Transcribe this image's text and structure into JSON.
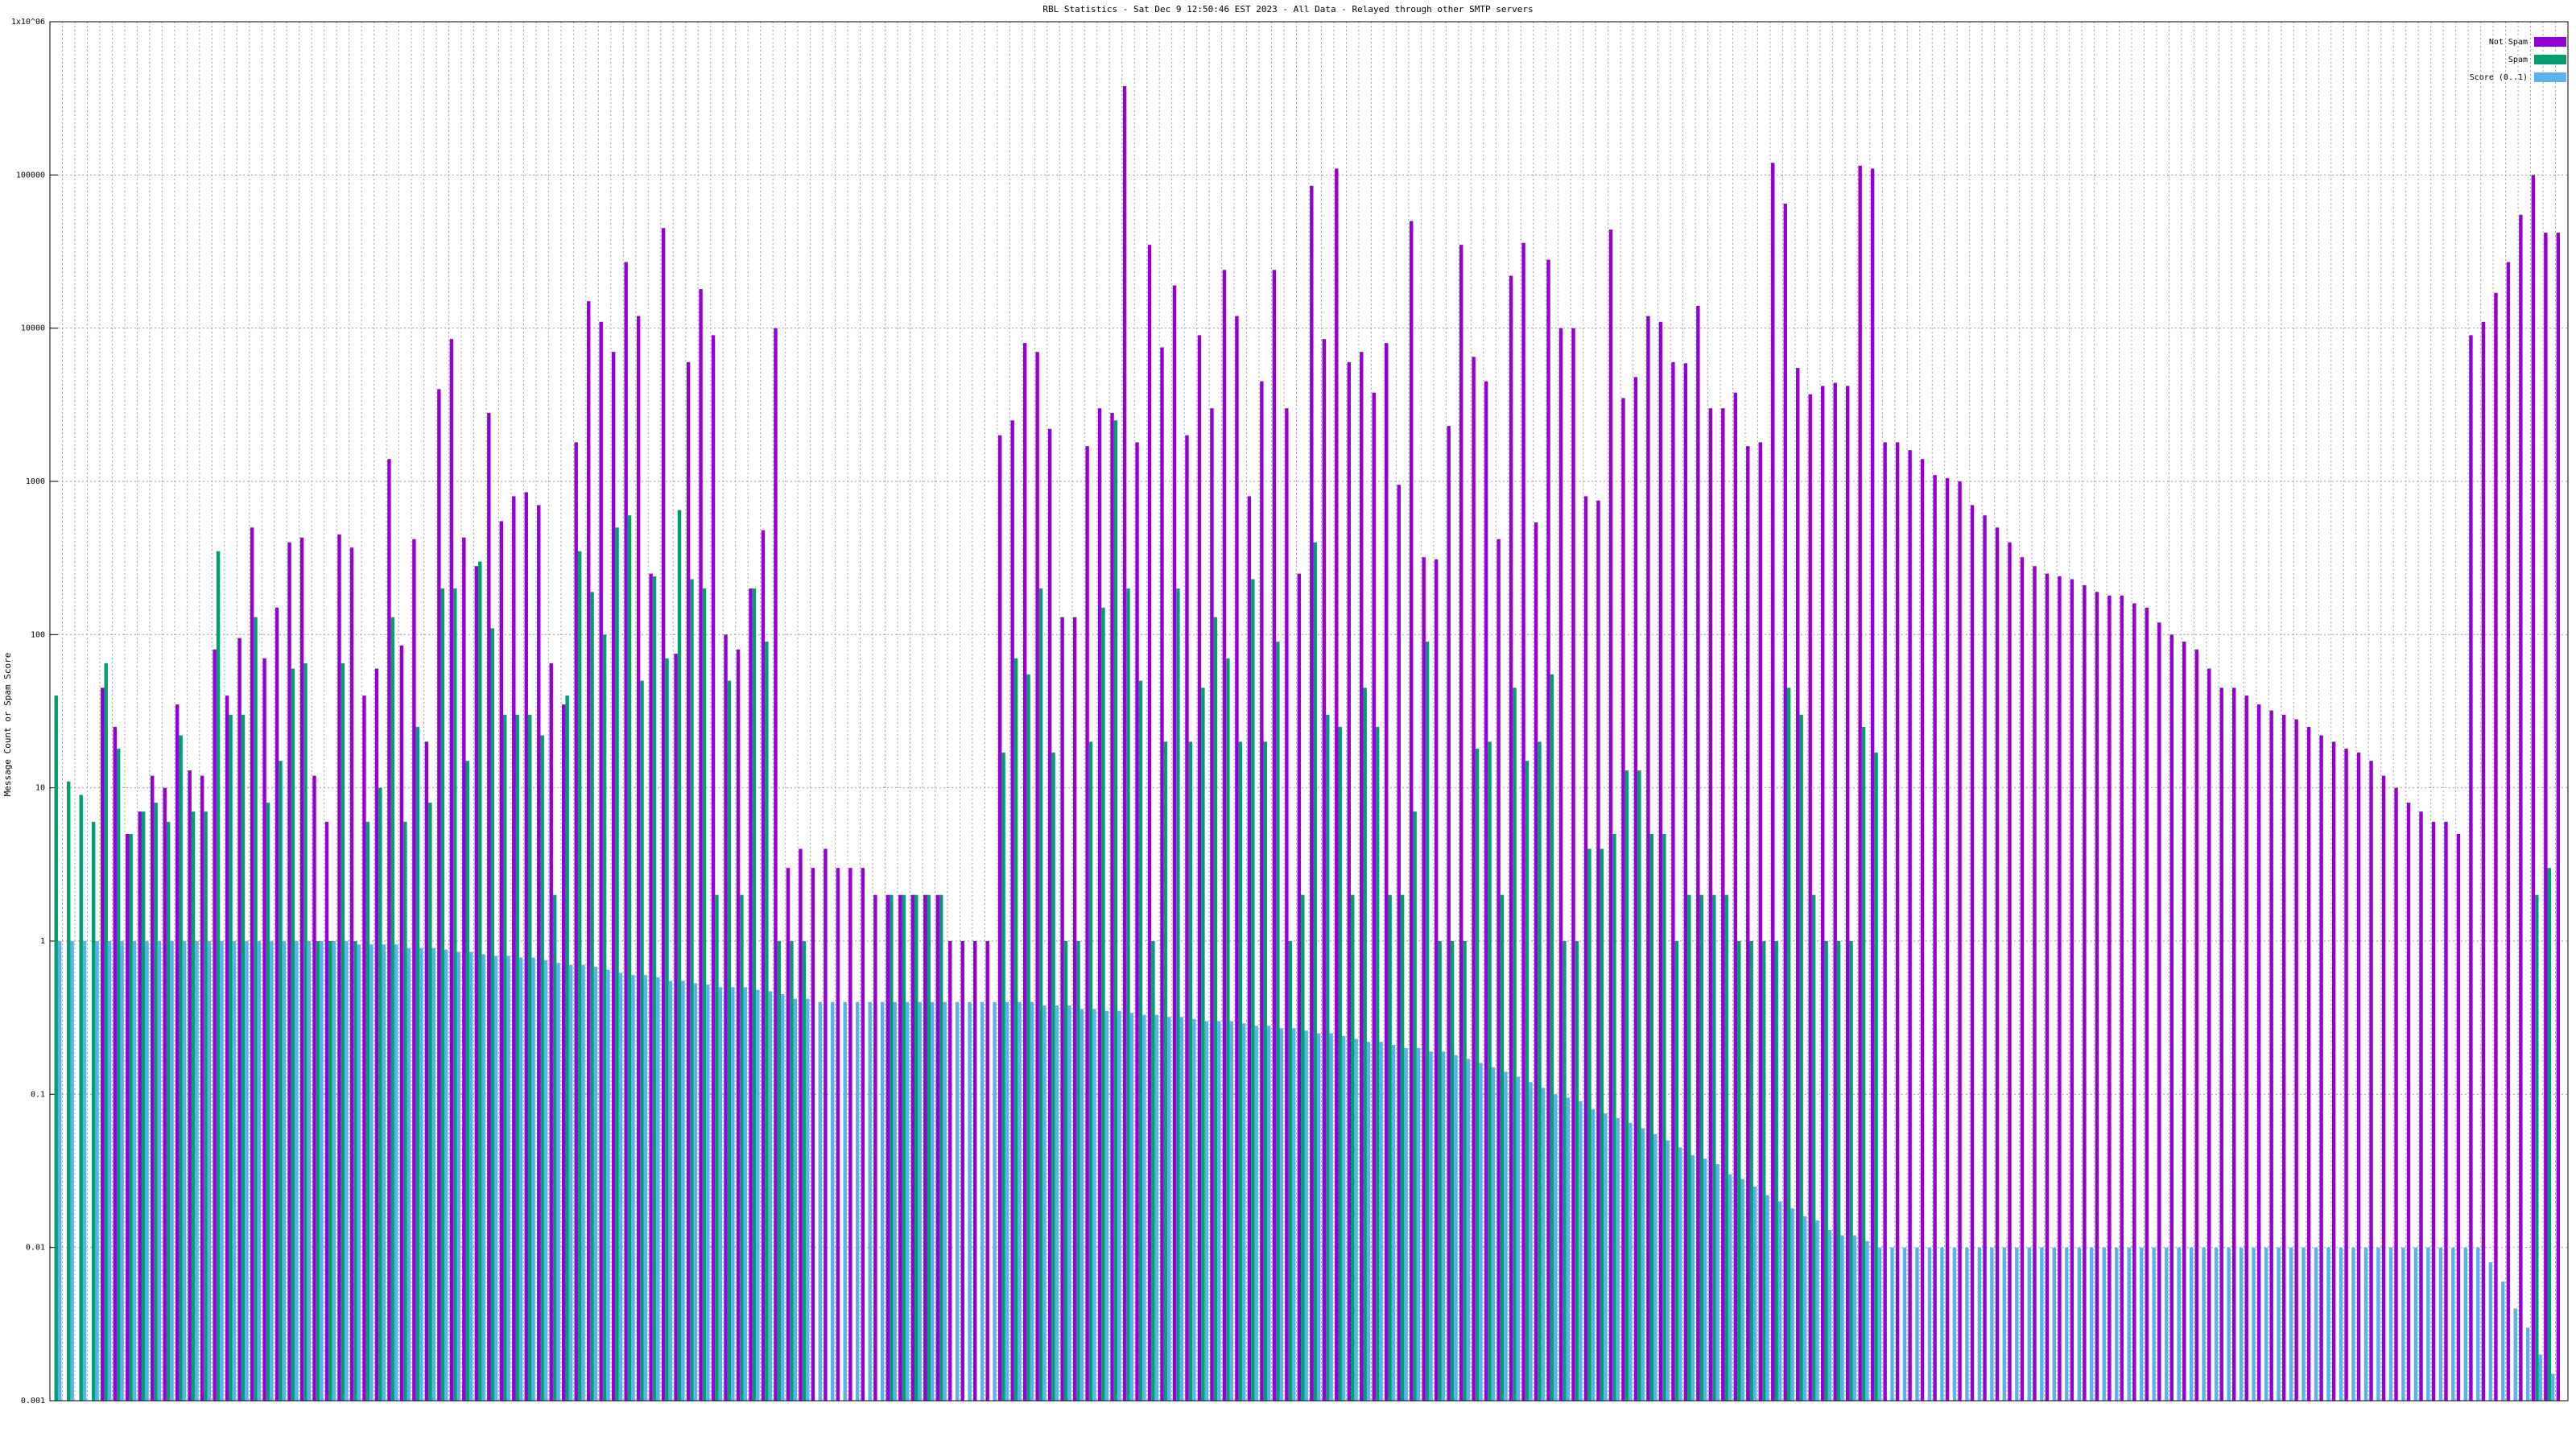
{
  "chart_data": {
    "type": "bar",
    "title": "RBL Statistics - Sat Dec  9 12:50:46 EST 2023 - All Data - Relayed through other SMTP servers",
    "y_label": "Message Count or Spam Score",
    "log_scale": true,
    "grid": true,
    "legend": "upper right",
    "ylim": [
      0.001,
      1000000
    ],
    "yticks": [
      0.001,
      0.01,
      0.1,
      1,
      10,
      100,
      1000,
      10000,
      100000,
      {
        "value": 1000000,
        "label": "1x10^06"
      }
    ],
    "series": [
      {
        "name": "Not Spam",
        "color": "#9400d3",
        "values": [
          null,
          null,
          null,
          null,
          45,
          25,
          5,
          7,
          12,
          10,
          35,
          13,
          12,
          80,
          40,
          95,
          500,
          70,
          150,
          400,
          430,
          12,
          6,
          450,
          370,
          40,
          60,
          1400,
          85,
          420,
          20,
          4000,
          8500,
          430,
          280,
          2800,
          550,
          800,
          850,
          700,
          65,
          35,
          1800,
          15000,
          11000,
          7000,
          27000,
          12000,
          250,
          45000,
          75,
          6000,
          18000,
          9000,
          100,
          80,
          200,
          480,
          10000,
          3,
          4,
          3,
          4,
          3,
          3,
          3,
          2,
          2,
          2,
          2,
          2,
          2,
          1,
          1,
          1,
          1,
          2000,
          2500,
          8000,
          7000,
          2200,
          130,
          130,
          1700,
          3000,
          2800,
          380000,
          1800,
          35000,
          7500,
          19000,
          2000,
          9000,
          3000,
          24000,
          12000,
          800,
          4500,
          24000,
          3000,
          250,
          85000,
          8500,
          110000,
          6000,
          7000,
          3800,
          8000,
          950,
          50000,
          320,
          310,
          2300,
          35000,
          6500,
          4500,
          420,
          22000,
          36000,
          540,
          28000,
          10000,
          10000,
          800,
          750,
          44000,
          3500,
          4800,
          12000,
          11000,
          6000,
          5900,
          14000,
          3000,
          3000,
          3800,
          1700,
          1800,
          120000,
          65000,
          5500,
          3700,
          4200,
          4400,
          4200,
          115000,
          110000,
          1800,
          1800,
          1600,
          1400,
          1100,
          1050,
          1000,
          700,
          600,
          500,
          400,
          320,
          280,
          250,
          240,
          230,
          210,
          190,
          180,
          180,
          160,
          150,
          120,
          100,
          90,
          80,
          60,
          45,
          45,
          40,
          35,
          32,
          30,
          28,
          25,
          22,
          20,
          18,
          17,
          15,
          12,
          10,
          8,
          7,
          6,
          6,
          5,
          9000,
          11000,
          17000,
          27000,
          55000,
          100000,
          42000,
          42000
        ]
      },
      {
        "name": "Spam",
        "color": "#009e73",
        "values": [
          40,
          11,
          9,
          6,
          65,
          18,
          5,
          7,
          8,
          6,
          22,
          7,
          7,
          350,
          30,
          30,
          130,
          8,
          15,
          60,
          65,
          1,
          1,
          65,
          1,
          6,
          10,
          130,
          6,
          25,
          8,
          200,
          200,
          15,
          300,
          110,
          30,
          30,
          30,
          22,
          2,
          40,
          350,
          190,
          100,
          500,
          600,
          50,
          240,
          70,
          650,
          230,
          200,
          2,
          50,
          2,
          200,
          90,
          1,
          1,
          1,
          null,
          null,
          null,
          null,
          null,
          null,
          2,
          2,
          2,
          2,
          2,
          null,
          null,
          null,
          null,
          17,
          70,
          55,
          200,
          17,
          1,
          1,
          20,
          150,
          2500,
          200,
          50,
          1,
          20,
          200,
          20,
          45,
          130,
          70,
          20,
          230,
          20,
          90,
          1,
          2,
          400,
          30,
          25,
          2,
          45,
          25,
          2,
          2,
          7,
          90,
          1,
          1,
          1,
          18,
          20,
          2,
          45,
          15,
          20,
          55,
          1,
          1,
          4,
          4,
          5,
          13,
          13,
          5,
          5,
          1,
          2,
          2,
          2,
          2,
          1,
          1,
          1,
          1,
          45,
          30,
          2,
          1,
          1,
          1,
          25,
          17,
          null,
          null,
          null,
          null,
          null,
          null,
          null,
          null,
          null,
          null,
          null,
          null,
          null,
          null,
          null,
          null,
          null,
          null,
          null,
          null,
          null,
          null,
          null,
          null,
          null,
          null,
          null,
          null,
          null,
          null,
          null,
          null,
          null,
          null,
          null,
          null,
          null,
          null,
          null,
          null,
          null,
          null,
          null,
          null,
          null,
          null,
          null,
          null,
          null,
          null,
          null,
          null,
          2,
          3,
          null
        ]
      },
      {
        "name": "Score (0..1)",
        "color": "#56b4e9",
        "values": [
          1,
          1,
          1,
          1,
          1,
          1,
          1,
          1,
          1,
          1,
          1,
          1,
          1,
          1,
          1,
          1,
          1,
          1,
          1,
          1,
          1,
          1,
          1,
          1,
          0.95,
          0.95,
          0.95,
          0.95,
          0.9,
          0.9,
          0.9,
          0.88,
          0.85,
          0.85,
          0.82,
          0.8,
          0.8,
          0.78,
          0.78,
          0.75,
          0.72,
          0.7,
          0.7,
          0.68,
          0.65,
          0.62,
          0.6,
          0.6,
          0.58,
          0.55,
          0.55,
          0.53,
          0.52,
          0.5,
          0.5,
          0.5,
          0.48,
          0.47,
          0.45,
          0.42,
          0.42,
          0.4,
          0.4,
          0.4,
          0.4,
          0.4,
          0.4,
          0.4,
          0.4,
          0.4,
          0.4,
          0.4,
          0.4,
          0.4,
          0.4,
          0.4,
          0.4,
          0.4,
          0.4,
          0.38,
          0.38,
          0.38,
          0.36,
          0.36,
          0.35,
          0.35,
          0.34,
          0.33,
          0.33,
          0.32,
          0.32,
          0.31,
          0.3,
          0.3,
          0.3,
          0.29,
          0.28,
          0.28,
          0.27,
          0.27,
          0.26,
          0.25,
          0.25,
          0.24,
          0.23,
          0.22,
          0.22,
          0.21,
          0.2,
          0.2,
          0.19,
          0.19,
          0.18,
          0.17,
          0.16,
          0.15,
          0.14,
          0.13,
          0.12,
          0.11,
          0.1,
          0.095,
          0.09,
          0.08,
          0.075,
          0.07,
          0.065,
          0.06,
          0.055,
          0.05,
          0.045,
          0.04,
          0.038,
          0.035,
          0.03,
          0.028,
          0.025,
          0.022,
          0.02,
          0.018,
          0.016,
          0.015,
          0.013,
          0.012,
          0.012,
          0.011,
          0.01,
          0.01,
          0.01,
          0.01,
          0.01,
          0.01,
          0.01,
          0.01,
          0.01,
          0.01,
          0.01,
          0.01,
          0.01,
          0.01,
          0.01,
          0.01,
          0.01,
          0.01,
          0.01,
          0.01,
          0.01,
          0.01,
          0.01,
          0.01,
          0.01,
          0.01,
          0.01,
          0.01,
          0.01,
          0.01,
          0.01,
          0.01,
          0.01,
          0.01,
          0.01,
          0.01,
          0.01,
          0.01,
          0.01,
          0.01,
          0.01,
          0.01,
          0.01,
          0.01,
          0.01,
          0.01,
          0.01,
          0.01,
          0.01,
          0.008,
          0.006,
          0.004,
          0.003,
          0.002,
          0.0015,
          0.001
        ]
      }
    ]
  }
}
